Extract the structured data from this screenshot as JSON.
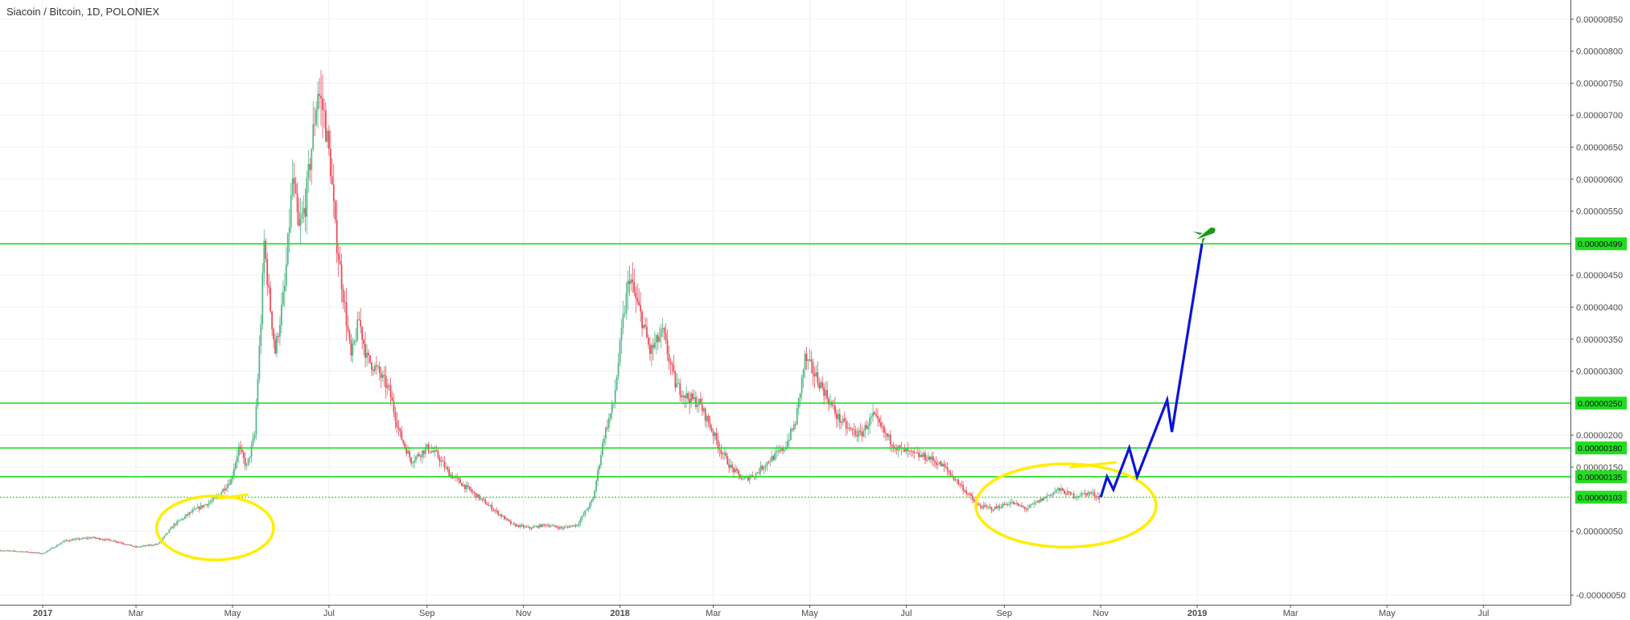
{
  "chart_data": {
    "type": "candlestick",
    "title": "Siacoin / Bitcoin, 1D, POLONIEX",
    "colors": {
      "up": "#53b987",
      "down": "#eb4d5c",
      "grid": "#eef0f3",
      "horizontal_line": "#22dd22",
      "label_bg": "#22dd22",
      "projection": "#0a14d9",
      "circle": "#ffee00",
      "rocket": "#1a9a1a"
    },
    "y_ticks": [
      "0.00000850",
      "0.00000800",
      "0.00000750",
      "0.00000700",
      "0.00000650",
      "0.00000600",
      "0.00000550",
      "0.00000450",
      "0.00000400",
      "0.00000350",
      "0.00000300",
      "0.00000200",
      "0.00000150",
      "0.00000050",
      "-0.00000050"
    ],
    "y_range": [
      -6.5e-07,
      8.8e-06
    ],
    "x_ticks": [
      {
        "label": "2017",
        "date": "2017-01-01",
        "bold": true
      },
      {
        "label": "Mar",
        "date": "2017-03-01"
      },
      {
        "label": "May",
        "date": "2017-05-01"
      },
      {
        "label": "Jul",
        "date": "2017-07-01"
      },
      {
        "label": "Sep",
        "date": "2017-09-01"
      },
      {
        "label": "Nov",
        "date": "2017-11-01"
      },
      {
        "label": "2018",
        "date": "2018-01-01",
        "bold": true
      },
      {
        "label": "Mar",
        "date": "2018-03-01"
      },
      {
        "label": "May",
        "date": "2018-05-01"
      },
      {
        "label": "Jul",
        "date": "2018-07-01"
      },
      {
        "label": "Sep",
        "date": "2018-09-01"
      },
      {
        "label": "Nov",
        "date": "2018-11-01"
      },
      {
        "label": "2019",
        "date": "2019-01-01",
        "bold": true
      },
      {
        "label": "Mar",
        "date": "2019-03-01"
      },
      {
        "label": "May",
        "date": "2019-05-01"
      },
      {
        "label": "Jul",
        "date": "2019-07-01"
      }
    ],
    "x_range": [
      "2016-12-05",
      "2019-08-25"
    ],
    "price_path": [
      [
        "2016-12-05",
        2e-07
      ],
      [
        "2016-12-20",
        1.8e-07
      ],
      [
        "2017-01-01",
        1.5e-07
      ],
      [
        "2017-01-15",
        3.5e-07
      ],
      [
        "2017-02-01",
        4e-07
      ],
      [
        "2017-02-15",
        3.5e-07
      ],
      [
        "2017-03-01",
        2.5e-07
      ],
      [
        "2017-03-15",
        3e-07
      ],
      [
        "2017-03-25",
        6e-07
      ],
      [
        "2017-04-05",
        8e-07
      ],
      [
        "2017-04-20",
        1e-06
      ],
      [
        "2017-04-30",
        1.3e-06
      ],
      [
        "2017-05-05",
        1.8e-06
      ],
      [
        "2017-05-10",
        1.5e-06
      ],
      [
        "2017-05-15",
        2e-06
      ],
      [
        "2017-05-19",
        3.8e-06
      ],
      [
        "2017-05-21",
        5e-06
      ],
      [
        "2017-05-24",
        4.2e-06
      ],
      [
        "2017-05-28",
        3.3e-06
      ],
      [
        "2017-06-03",
        4.3e-06
      ],
      [
        "2017-06-08",
        6e-06
      ],
      [
        "2017-06-12",
        5.2e-06
      ],
      [
        "2017-06-16",
        5.6e-06
      ],
      [
        "2017-06-20",
        6.5e-06
      ],
      [
        "2017-06-24",
        7.4e-06
      ],
      [
        "2017-06-28",
        7e-06
      ],
      [
        "2017-07-02",
        6.2e-06
      ],
      [
        "2017-07-05",
        5.2e-06
      ],
      [
        "2017-07-10",
        4.2e-06
      ],
      [
        "2017-07-15",
        3.2e-06
      ],
      [
        "2017-07-20",
        3.8e-06
      ],
      [
        "2017-07-25",
        3.2e-06
      ],
      [
        "2017-08-01",
        3e-06
      ],
      [
        "2017-08-08",
        2.7e-06
      ],
      [
        "2017-08-15",
        2e-06
      ],
      [
        "2017-08-22",
        1.6e-06
      ],
      [
        "2017-09-01",
        1.8e-06
      ],
      [
        "2017-09-07",
        1.7e-06
      ],
      [
        "2017-09-15",
        1.4e-06
      ],
      [
        "2017-09-25",
        1.2e-06
      ],
      [
        "2017-10-05",
        1e-06
      ],
      [
        "2017-10-15",
        8e-07
      ],
      [
        "2017-10-25",
        6e-07
      ],
      [
        "2017-11-05",
        5.5e-07
      ],
      [
        "2017-11-15",
        6e-07
      ],
      [
        "2017-11-25",
        5.5e-07
      ],
      [
        "2017-12-05",
        6e-07
      ],
      [
        "2017-12-15",
        1e-06
      ],
      [
        "2017-12-22",
        2e-06
      ],
      [
        "2017-12-28",
        2.5e-06
      ],
      [
        "2018-01-03",
        3.8e-06
      ],
      [
        "2018-01-07",
        4.5e-06
      ],
      [
        "2018-01-10",
        4.2e-06
      ],
      [
        "2018-01-15",
        3.8e-06
      ],
      [
        "2018-01-20",
        3.3e-06
      ],
      [
        "2018-01-28",
        3.6e-06
      ],
      [
        "2018-02-05",
        2.8e-06
      ],
      [
        "2018-02-12",
        2.6e-06
      ],
      [
        "2018-02-20",
        2.5e-06
      ],
      [
        "2018-02-26",
        2.2e-06
      ],
      [
        "2018-03-05",
        1.8e-06
      ],
      [
        "2018-03-12",
        1.5e-06
      ],
      [
        "2018-03-20",
        1.3e-06
      ],
      [
        "2018-03-28",
        1.4e-06
      ],
      [
        "2018-04-05",
        1.6e-06
      ],
      [
        "2018-04-15",
        1.8e-06
      ],
      [
        "2018-04-22",
        2.2e-06
      ],
      [
        "2018-04-28",
        3.2e-06
      ],
      [
        "2018-05-03",
        3e-06
      ],
      [
        "2018-05-10",
        2.7e-06
      ],
      [
        "2018-05-18",
        2.3e-06
      ],
      [
        "2018-05-25",
        2.1e-06
      ],
      [
        "2018-06-02",
        2e-06
      ],
      [
        "2018-06-10",
        2.3e-06
      ],
      [
        "2018-06-18",
        2e-06
      ],
      [
        "2018-06-25",
        1.8e-06
      ],
      [
        "2018-07-05",
        1.7e-06
      ],
      [
        "2018-07-15",
        1.65e-06
      ],
      [
        "2018-07-25",
        1.5e-06
      ],
      [
        "2018-08-05",
        1.2e-06
      ],
      [
        "2018-08-15",
        9e-07
      ],
      [
        "2018-08-25",
        8.5e-07
      ],
      [
        "2018-09-05",
        9.5e-07
      ],
      [
        "2018-09-15",
        8.5e-07
      ],
      [
        "2018-09-25",
        1e-06
      ],
      [
        "2018-10-05",
        1.15e-06
      ],
      [
        "2018-10-15",
        1.05e-06
      ],
      [
        "2018-10-25",
        1.1e-06
      ],
      [
        "2018-10-31",
        1.03e-06
      ]
    ],
    "projection": [
      [
        "2018-11-01",
        1.03e-06
      ],
      [
        "2018-11-05",
        1.35e-06
      ],
      [
        "2018-11-09",
        1.15e-06
      ],
      [
        "2018-11-19",
        1.8e-06
      ],
      [
        "2018-11-24",
        1.35e-06
      ],
      [
        "2018-12-13",
        2.55e-06
      ],
      [
        "2018-12-16",
        2.05e-06
      ],
      [
        "2019-01-04",
        4.99e-06
      ]
    ],
    "horizontal_lines": [
      {
        "value": 4.99e-06,
        "label": "0.00000499",
        "style": "solid"
      },
      {
        "value": 2.5e-06,
        "label": "0.00000250",
        "style": "solid"
      },
      {
        "value": 1.8e-06,
        "label": "0.00000180",
        "style": "solid"
      },
      {
        "value": 1.35e-06,
        "label": "0.00000135",
        "style": "solid"
      },
      {
        "value": 1.03e-06,
        "label": "0.00000103",
        "style": "dotted"
      }
    ],
    "annotations": [
      {
        "type": "ellipse",
        "name": "accumulation-circle-2017",
        "center": [
          "2017-04-20",
          5.5e-07
        ],
        "radius_days": 37,
        "radius_value": 5e-07
      },
      {
        "type": "ellipse",
        "name": "accumulation-circle-2018",
        "center": [
          "2018-10-10",
          9e-07
        ],
        "radius_days": 57,
        "radius_value": 6.5e-07
      },
      {
        "type": "rocket",
        "name": "rocket-icon",
        "at": [
          "2019-01-07",
          5.15e-06
        ]
      }
    ]
  }
}
